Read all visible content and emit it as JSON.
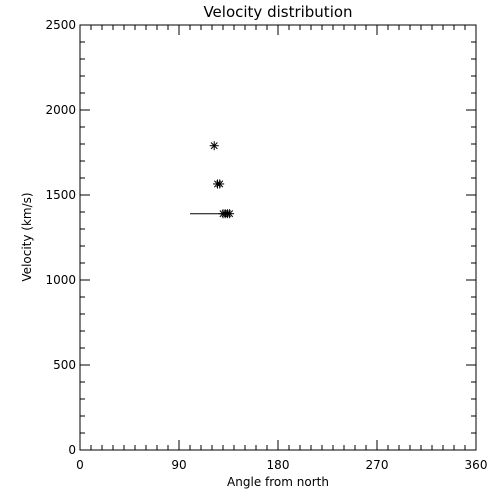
{
  "chart_data": {
    "type": "scatter",
    "title": "Velocity distribution",
    "xlabel": "Angle from north",
    "ylabel": "Velocity (km/s)",
    "xlim": [
      0,
      360
    ],
    "ylim": [
      0,
      2500
    ],
    "xticks": [
      0,
      90,
      180,
      270,
      360
    ],
    "yticks": [
      0,
      500,
      1000,
      1500,
      2000,
      2500
    ],
    "grid": false,
    "marker": "asterisk",
    "points": [
      {
        "x": 122,
        "y": 1790
      },
      {
        "x": 125,
        "y": 1565
      },
      {
        "x": 127,
        "y": 1565
      },
      {
        "x": 130,
        "y": 1390
      },
      {
        "x": 132,
        "y": 1390
      },
      {
        "x": 134,
        "y": 1390
      },
      {
        "x": 136,
        "y": 1390
      }
    ],
    "range_bar": {
      "x_from": 100,
      "x_to": 136,
      "y": 1390
    }
  }
}
